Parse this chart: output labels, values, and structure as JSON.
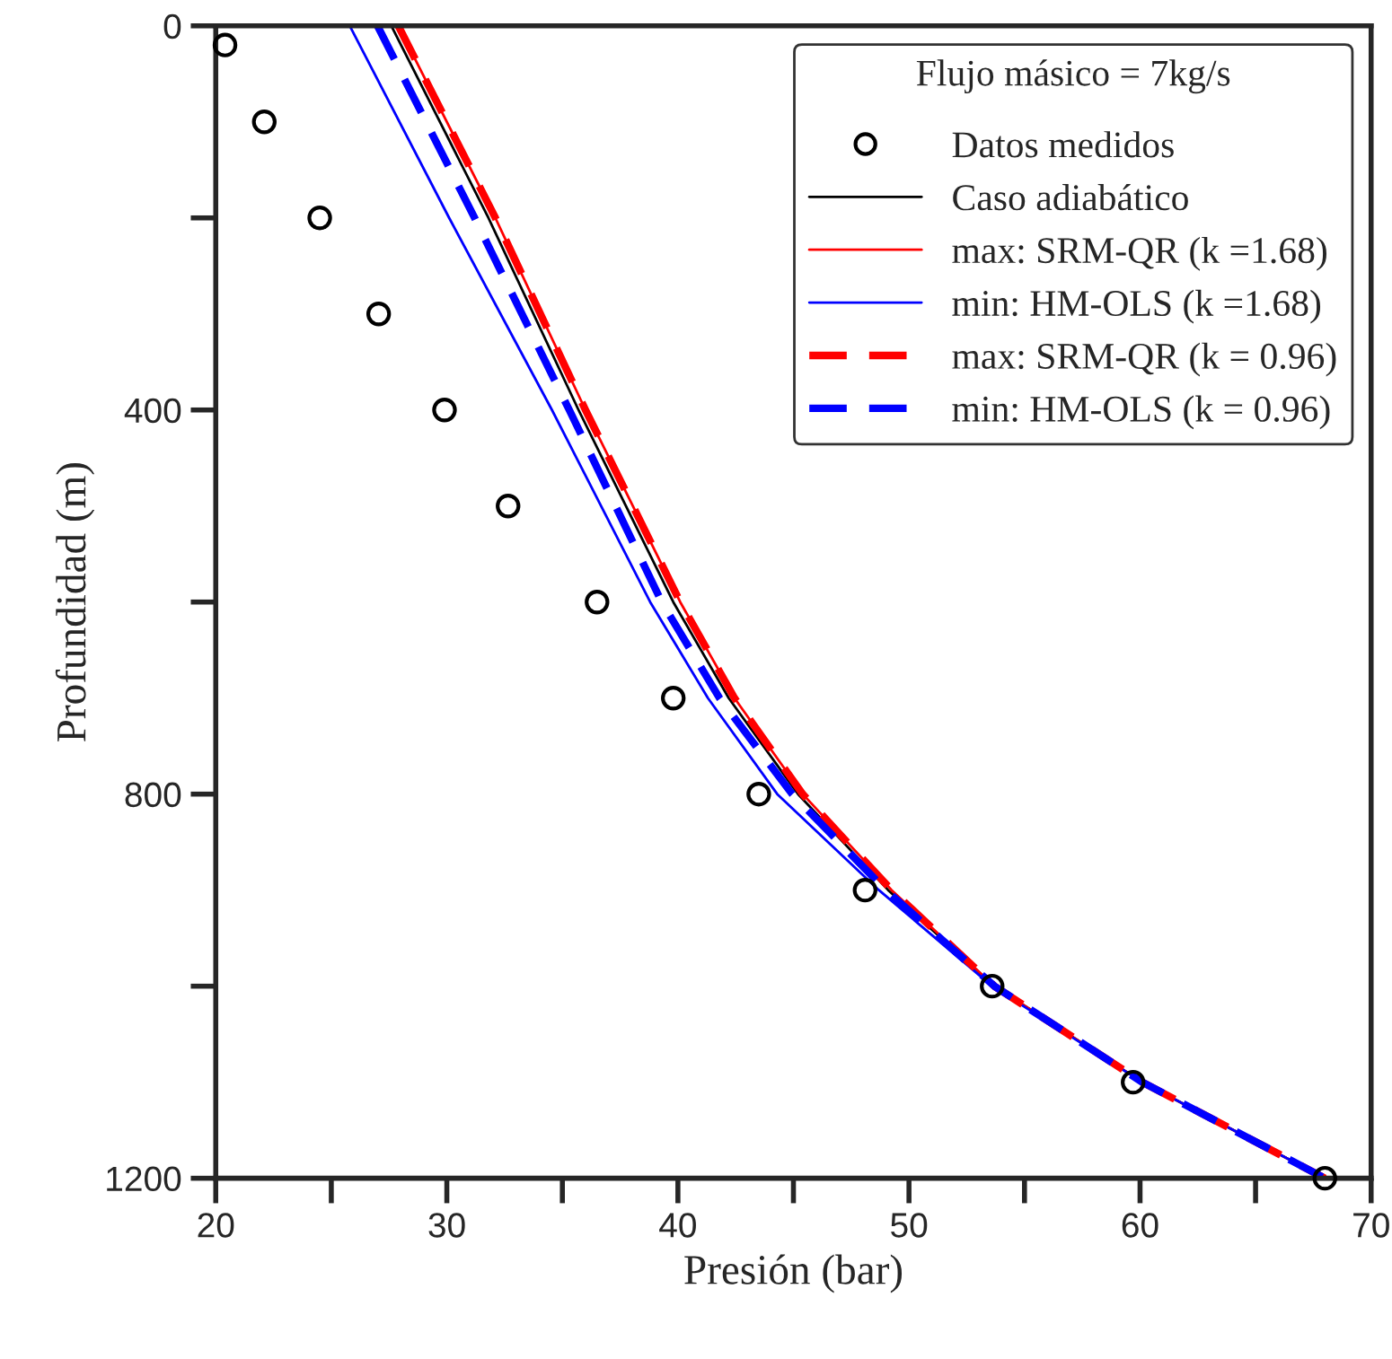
{
  "chart_data": {
    "type": "line",
    "xlabel": "Presión (bar)",
    "ylabel": "Profundidad (m)",
    "legend_title": "Flujo másico = 7kg/s",
    "legend": "top right",
    "grid": false,
    "xlim": [
      20,
      70
    ],
    "xticks": [
      20,
      {
        "value": 25,
        "label": null
      },
      30,
      {
        "value": 35,
        "label": null
      },
      40,
      {
        "value": 45,
        "label": null
      },
      50,
      {
        "value": 55,
        "label": null
      },
      60,
      {
        "value": 65,
        "label": null
      },
      70
    ],
    "ylim": [
      1200,
      0
    ],
    "yticks": [
      0,
      {
        "value": 200,
        "label": null
      },
      400,
      {
        "value": 600,
        "label": null
      },
      800,
      {
        "value": 1000,
        "label": null
      },
      1200
    ],
    "series": [
      {
        "name": "Datos medidos",
        "type": "scatter",
        "marker": "circle",
        "color": "#000000",
        "x": [
          20.4,
          22.1,
          24.5,
          27.05,
          29.9,
          32.65,
          36.5,
          39.8,
          43.5,
          48.1,
          53.6,
          59.7,
          68.0
        ],
        "values": [
          20,
          100,
          200,
          300,
          400,
          500,
          600,
          700,
          800,
          900,
          1000,
          1100,
          1200
        ]
      },
      {
        "name": "Caso adiabático",
        "line_style": "solid",
        "color": "#000000",
        "x": [
          27.6,
          31.8,
          35.7,
          39.8,
          42.2,
          45.2,
          49.1,
          53.7,
          60.1,
          68.0
        ],
        "values": [
          0,
          200,
          400,
          600,
          700,
          800,
          900,
          1000,
          1100,
          1200
        ]
      },
      {
        "name": "max: SRM-QR (k =1.68)",
        "line_style": "solid",
        "color": "#ff0000",
        "x": [
          27.9,
          32.1,
          36.0,
          40.1,
          42.45,
          45.4,
          49.25,
          53.7,
          60.1,
          68.0
        ],
        "values": [
          0,
          200,
          400,
          600,
          700,
          800,
          900,
          1000,
          1100,
          1200
        ]
      },
      {
        "name": "min: HM-OLS (k =1.68)",
        "line_style": "solid",
        "color": "#0000ff",
        "x": [
          25.8,
          30.1,
          34.55,
          38.8,
          41.3,
          44.3,
          48.7,
          53.6,
          60.1,
          68.0
        ],
        "values": [
          0,
          200,
          400,
          600,
          700,
          800,
          900,
          1000,
          1100,
          1200
        ]
      },
      {
        "name": "max: SRM-QR (k = 0.96)",
        "line_style": "dashed",
        "color": "#ff0000",
        "x": [
          27.9,
          32.1,
          36.0,
          40.1,
          42.45,
          45.4,
          49.25,
          53.7,
          60.1,
          68.0
        ],
        "values": [
          0,
          200,
          400,
          600,
          700,
          800,
          900,
          1000,
          1100,
          1200
        ]
      },
      {
        "name": "min: HM-OLS (k = 0.96)",
        "line_style": "dashed",
        "color": "#0000ff",
        "x": [
          27.0,
          31.2,
          35.3,
          39.3,
          41.8,
          44.95,
          49.0,
          53.7,
          60.1,
          68.0
        ],
        "values": [
          0,
          200,
          400,
          600,
          700,
          800,
          900,
          1000,
          1100,
          1200
        ]
      }
    ]
  }
}
